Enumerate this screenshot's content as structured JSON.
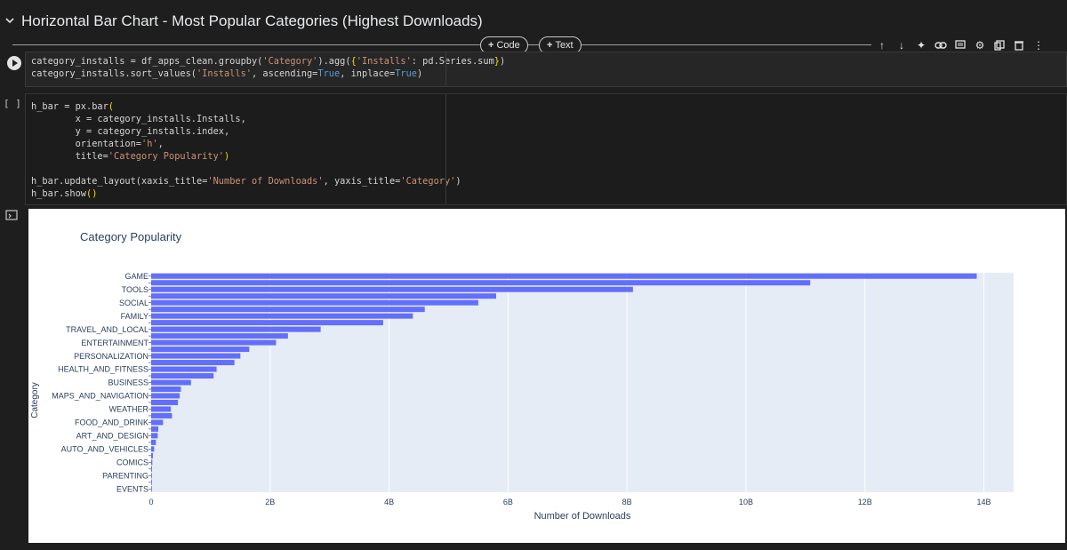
{
  "section": {
    "title": "Horizontal Bar Chart - Most Popular Categories (Highest Downloads)"
  },
  "add_bar": {
    "code_label": "Code",
    "text_label": "Text"
  },
  "toolbar": {
    "icons": [
      "arrow-up-icon",
      "arrow-down-icon",
      "sparkle-icon",
      "link-icon",
      "comment-icon",
      "gear-icon",
      "mirror-icon",
      "delete-icon",
      "more-icon"
    ]
  },
  "cell1": {
    "lines": [
      "category_installs = df_apps_clean.groupby('Category').agg({'Installs': pd.Series.sum})",
      "category_installs.sort_values('Installs', ascending=True, inplace=True)"
    ]
  },
  "cell2": {
    "bracket": "[ ]",
    "lines": [
      "h_bar = px.bar(",
      "        x = category_installs.Installs,",
      "        y = category_installs.index,",
      "        orientation='h',",
      "        title='Category Popularity')",
      "",
      "h_bar.update_layout(xaxis_title='Number of Downloads', yaxis_title='Category')",
      "h_bar.show()"
    ]
  },
  "chart_data": {
    "type": "bar",
    "orientation": "h",
    "title": "Category Popularity",
    "xlabel": "Number of Downloads",
    "ylabel": "Category",
    "xlim": [
      0,
      14.5
    ],
    "x_unit": "B",
    "x_ticks": [
      "0",
      "2B",
      "4B",
      "6B",
      "8B",
      "10B",
      "12B",
      "14B"
    ],
    "x_tick_values": [
      0,
      2,
      4,
      6,
      8,
      10,
      12,
      14
    ],
    "bar_color": "#636efa",
    "plot_bg": "#e5ecf6",
    "categories": [
      "GAME",
      "",
      "TOOLS",
      "",
      "SOCIAL",
      "",
      "FAMILY",
      "",
      "TRAVEL_AND_LOCAL",
      "",
      "ENTERTAINMENT",
      "",
      "PERSONALIZATION",
      "",
      "HEALTH_AND_FITNESS",
      "",
      "BUSINESS",
      "",
      "MAPS_AND_NAVIGATION",
      "",
      "WEATHER",
      "",
      "FOOD_AND_DRINK",
      "",
      "ART_AND_DESIGN",
      "",
      "AUTO_AND_VEHICLES",
      "",
      "COMICS",
      "",
      "PARENTING",
      "",
      "EVENTS"
    ],
    "values": [
      13.88,
      11.08,
      8.1,
      5.8,
      5.5,
      4.6,
      4.4,
      3.9,
      2.85,
      2.3,
      2.1,
      1.65,
      1.5,
      1.4,
      1.1,
      1.05,
      0.67,
      0.5,
      0.48,
      0.45,
      0.33,
      0.35,
      0.2,
      0.12,
      0.11,
      0.08,
      0.05,
      0.03,
      0.02,
      0.015,
      0.01,
      0.008,
      0.006
    ]
  }
}
